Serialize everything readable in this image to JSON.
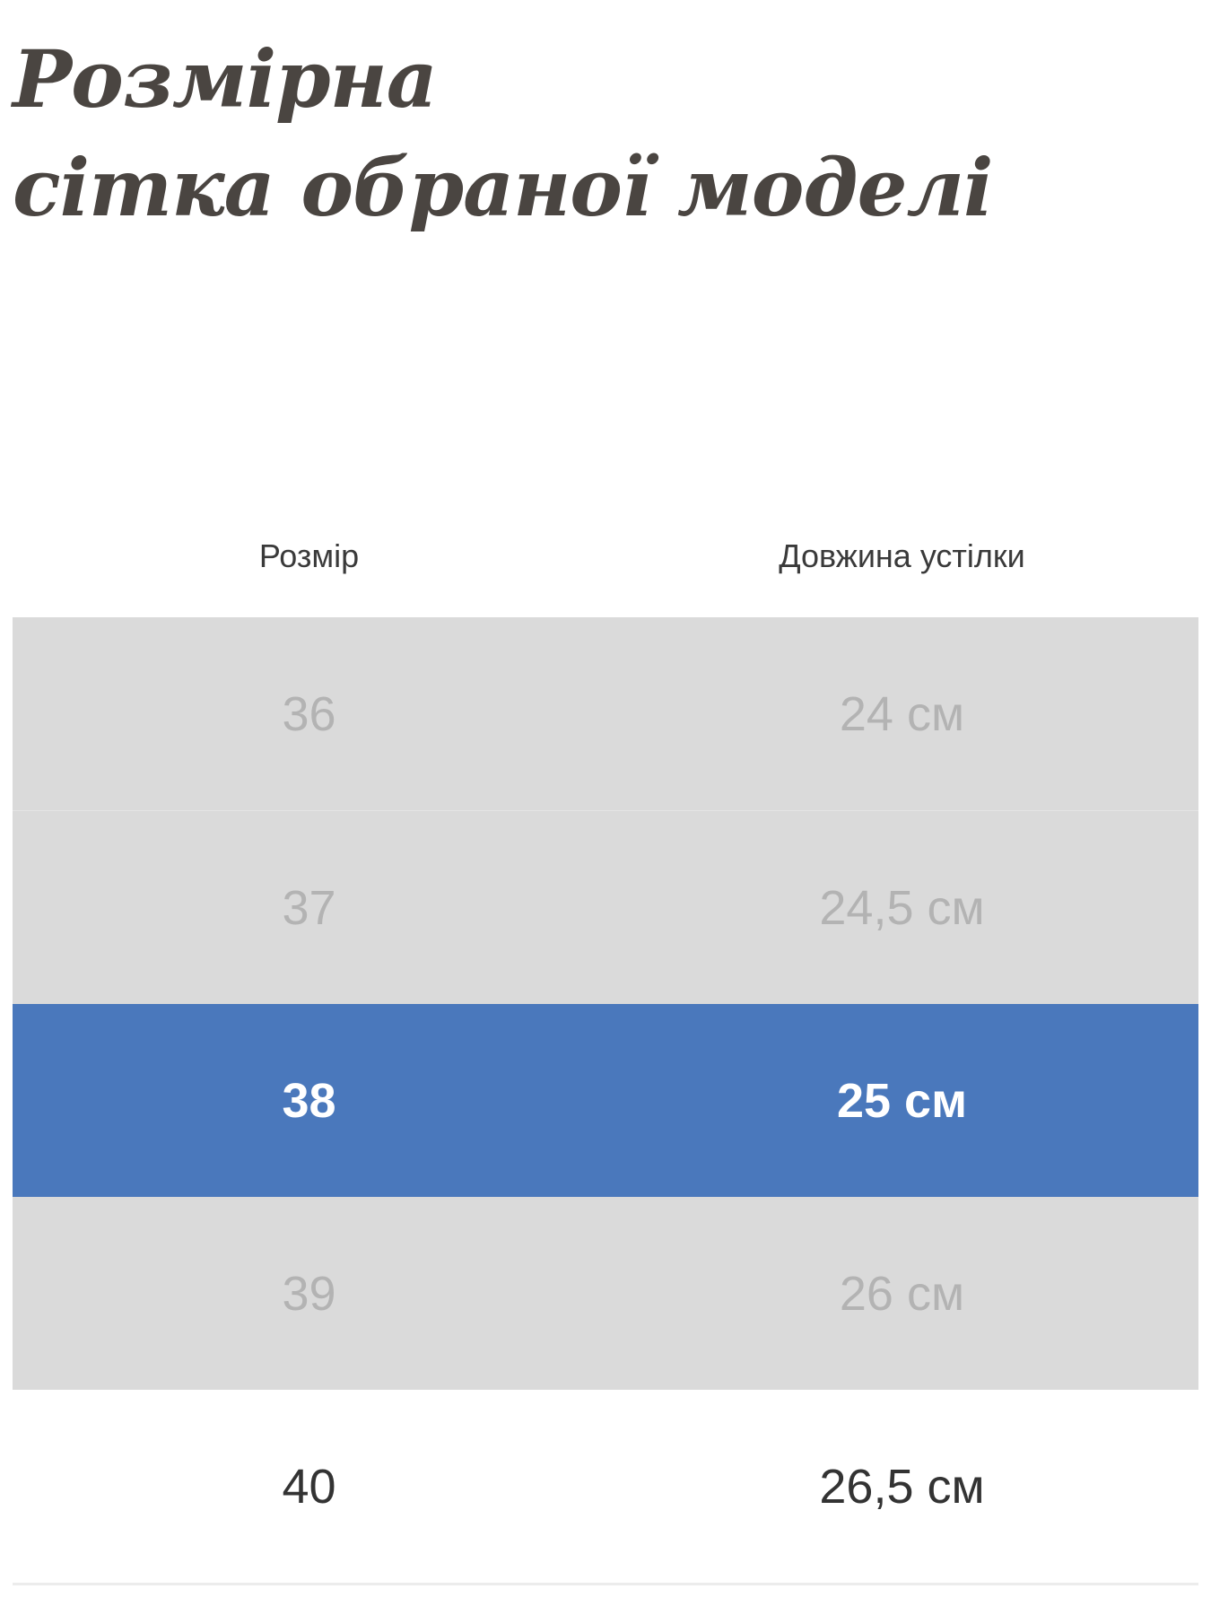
{
  "title": {
    "line1": "Розмірна",
    "line2": "сітка обраної моделі"
  },
  "table": {
    "headers": [
      "Розмір",
      "Довжина устілки"
    ],
    "rows": [
      {
        "size": "36",
        "length": "24 см"
      },
      {
        "size": "37",
        "length": "24,5 см"
      },
      {
        "size": "38",
        "length": "25 см"
      },
      {
        "size": "39",
        "length": "26 см"
      },
      {
        "size": "40",
        "length": "26,5 см"
      }
    ],
    "selected_size": "38"
  },
  "colors": {
    "selected_row": "#4a78bc",
    "unavailable_row": "#dadada",
    "title": "#4a4541"
  }
}
